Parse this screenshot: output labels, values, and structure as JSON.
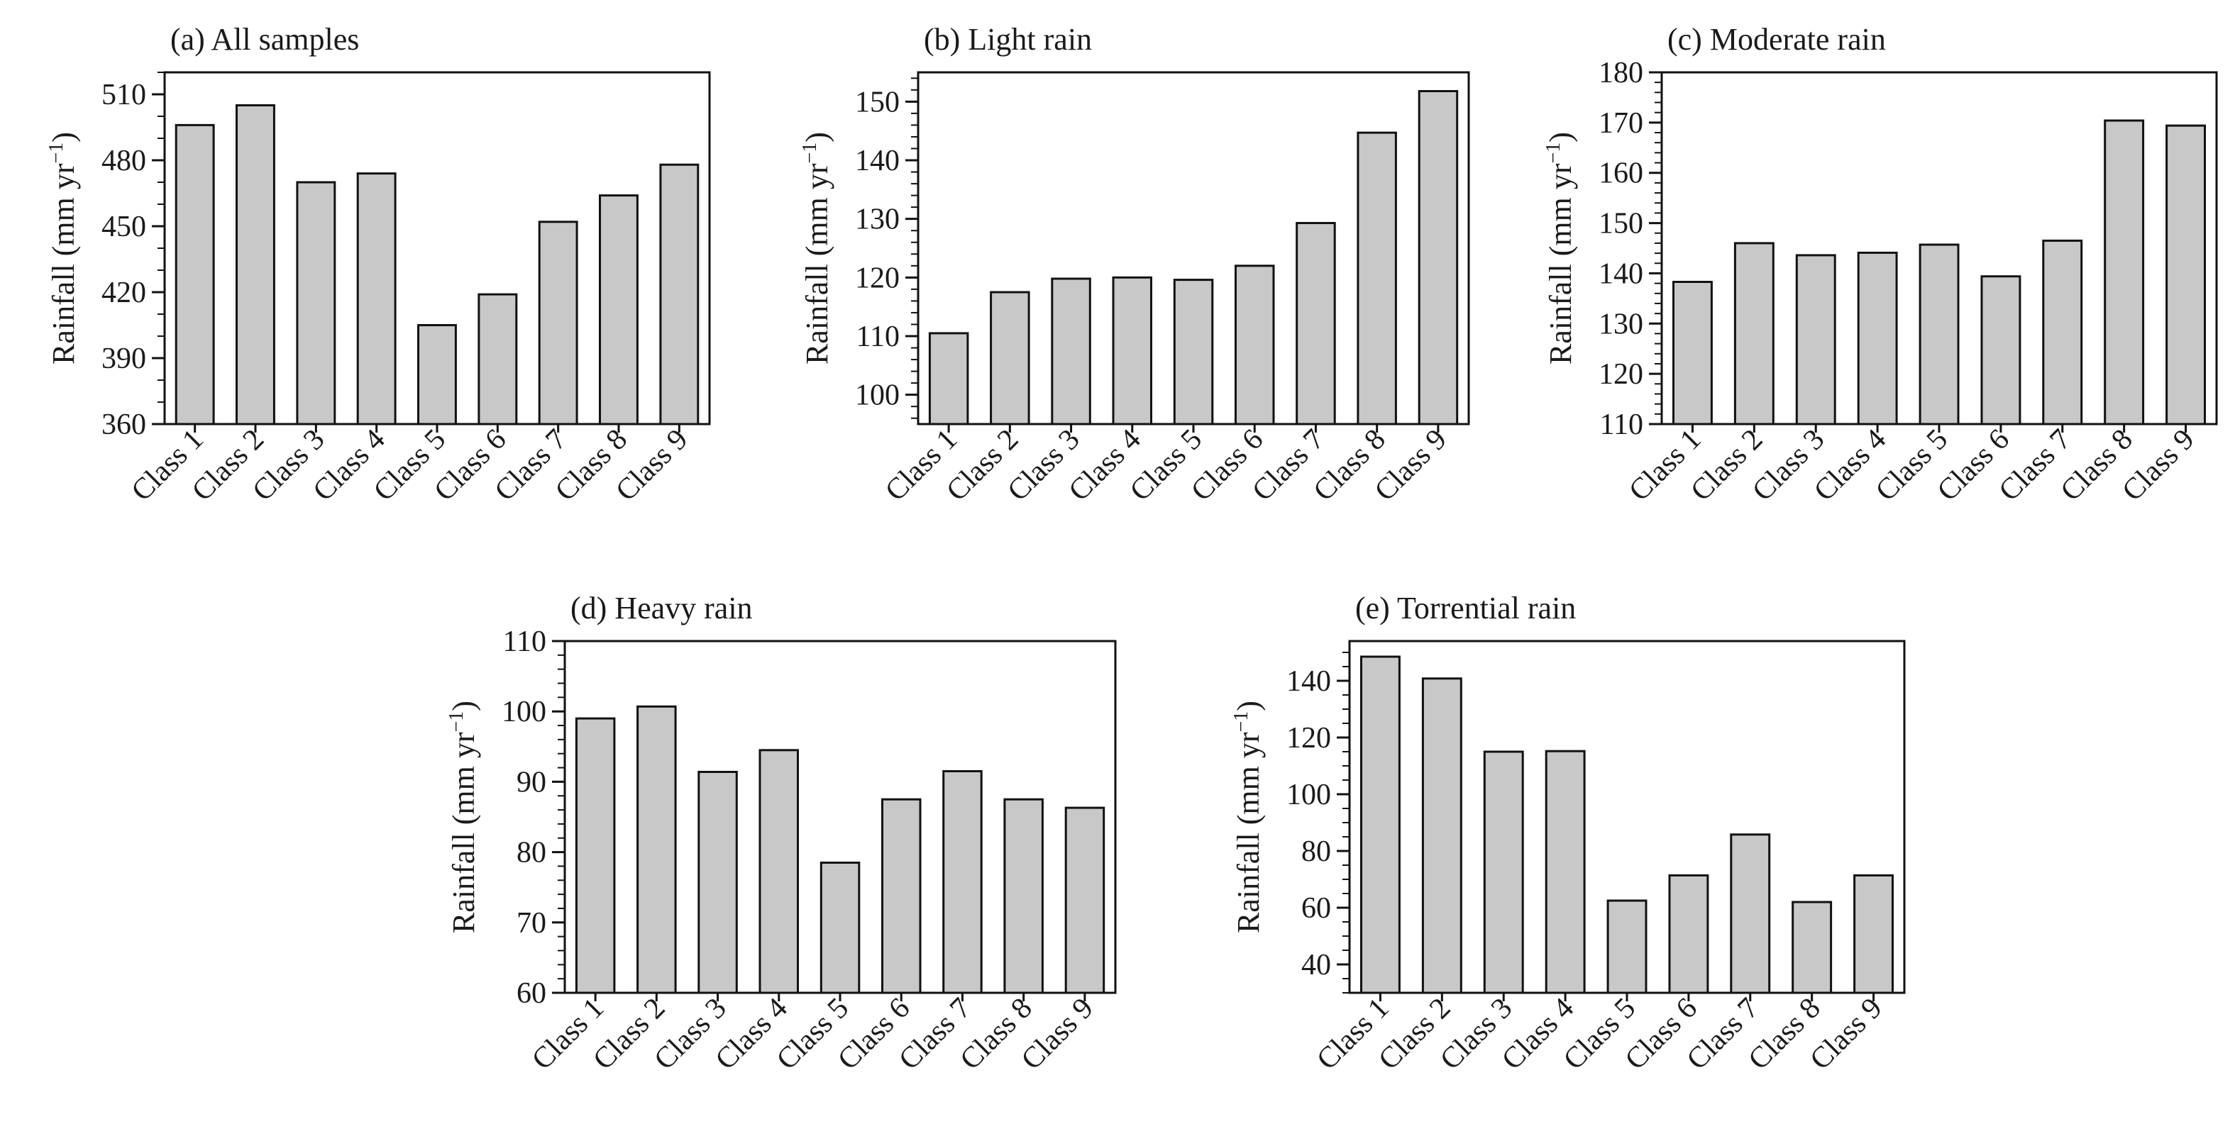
{
  "chart_data": [
    {
      "type": "bar",
      "title": "(a) All samples",
      "ylabel": "Rainfall (mm yr",
      "ylabel_sup": "−1",
      "ylabel_close": ")",
      "categories": [
        "Class 1",
        "Class 2",
        "Class 3",
        "Class 4",
        "Class 5",
        "Class 6",
        "Class 7",
        "Class 8",
        "Class 9"
      ],
      "values": [
        496,
        505,
        470,
        474,
        405,
        419,
        452,
        464,
        478
      ],
      "ylim": [
        360,
        520
      ],
      "yticks": [
        360,
        390,
        420,
        450,
        480,
        510
      ],
      "minor_step": 10
    },
    {
      "type": "bar",
      "title": "(b) Light rain",
      "ylabel": "Rainfall (mm yr",
      "ylabel_sup": "−1",
      "ylabel_close": ")",
      "categories": [
        "Class 1",
        "Class 2",
        "Class 3",
        "Class 4",
        "Class 5",
        "Class 6",
        "Class 7",
        "Class 8",
        "Class 9"
      ],
      "values": [
        110.5,
        117.5,
        119.8,
        120.0,
        119.6,
        122.0,
        129.3,
        144.7,
        151.8
      ],
      "ylim": [
        95,
        155
      ],
      "yticks": [
        100,
        110,
        120,
        130,
        140,
        150
      ],
      "minor_step": 2
    },
    {
      "type": "bar",
      "title": "(c) Moderate rain",
      "ylabel": "Rainfall (mm yr",
      "ylabel_sup": "−1",
      "ylabel_close": ")",
      "categories": [
        "Class 1",
        "Class 2",
        "Class 3",
        "Class 4",
        "Class 5",
        "Class 6",
        "Class 7",
        "Class 8",
        "Class 9"
      ],
      "values": [
        138.3,
        146.0,
        143.6,
        144.1,
        145.7,
        139.4,
        146.5,
        170.4,
        169.4
      ],
      "ylim": [
        110,
        180
      ],
      "yticks": [
        110,
        120,
        130,
        140,
        150,
        160,
        170,
        180
      ],
      "minor_step": 2
    },
    {
      "type": "bar",
      "title": "(d) Heavy rain",
      "ylabel": "Rainfall (mm yr",
      "ylabel_sup": "−1",
      "ylabel_close": ")",
      "categories": [
        "Class 1",
        "Class 2",
        "Class 3",
        "Class 4",
        "Class 5",
        "Class 6",
        "Class 7",
        "Class 8",
        "Class 9"
      ],
      "values": [
        99.0,
        100.7,
        91.4,
        94.5,
        78.5,
        87.5,
        91.5,
        87.5,
        86.3
      ],
      "ylim": [
        60,
        110
      ],
      "yticks": [
        60,
        70,
        80,
        90,
        100,
        110
      ],
      "minor_step": 2
    },
    {
      "type": "bar",
      "title": "(e) Torrential rain",
      "ylabel": "Rainfall (mm yr",
      "ylabel_sup": "−1",
      "ylabel_close": ")",
      "categories": [
        "Class 1",
        "Class 2",
        "Class 3",
        "Class 4",
        "Class 5",
        "Class 6",
        "Class 7",
        "Class 8",
        "Class 9"
      ],
      "values": [
        148.5,
        140.8,
        115.0,
        115.2,
        62.5,
        71.4,
        85.8,
        62.0,
        71.4
      ],
      "ylim": [
        30,
        154
      ],
      "yticks": [
        40,
        60,
        80,
        100,
        120,
        140
      ],
      "minor_step": 5
    }
  ],
  "colors": {
    "bar_fill": "#c8c8c8",
    "bar_stroke": "#111111"
  }
}
